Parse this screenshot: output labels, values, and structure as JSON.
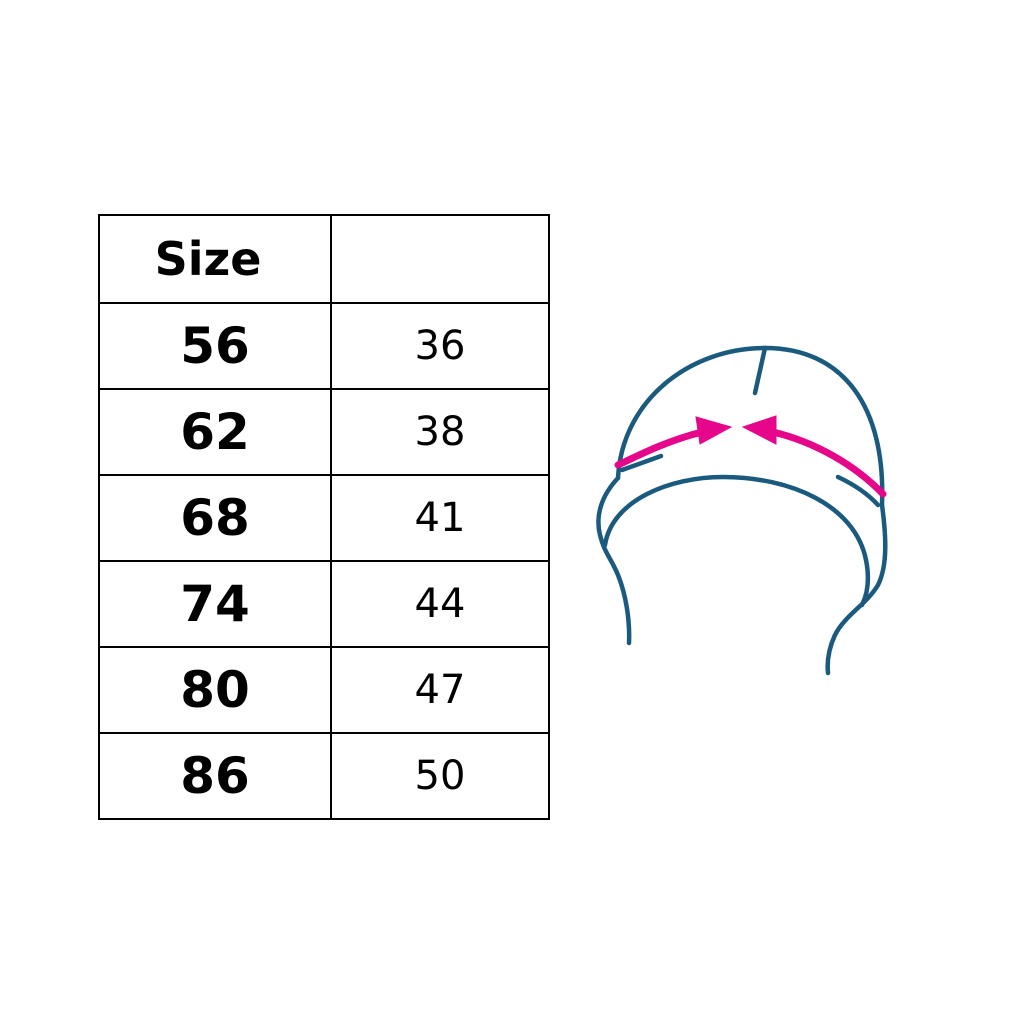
{
  "table": {
    "headers": [
      "Size",
      ""
    ],
    "rows": [
      [
        "56",
        "36"
      ],
      [
        "62",
        "38"
      ],
      [
        "68",
        "41"
      ],
      [
        "74",
        "44"
      ],
      [
        "80",
        "47"
      ],
      [
        "86",
        "50"
      ]
    ]
  },
  "illustration": {
    "subject": "hat-head-circumference",
    "outline_color": "#1a5a7e",
    "arrow_color": "#e6068c"
  }
}
